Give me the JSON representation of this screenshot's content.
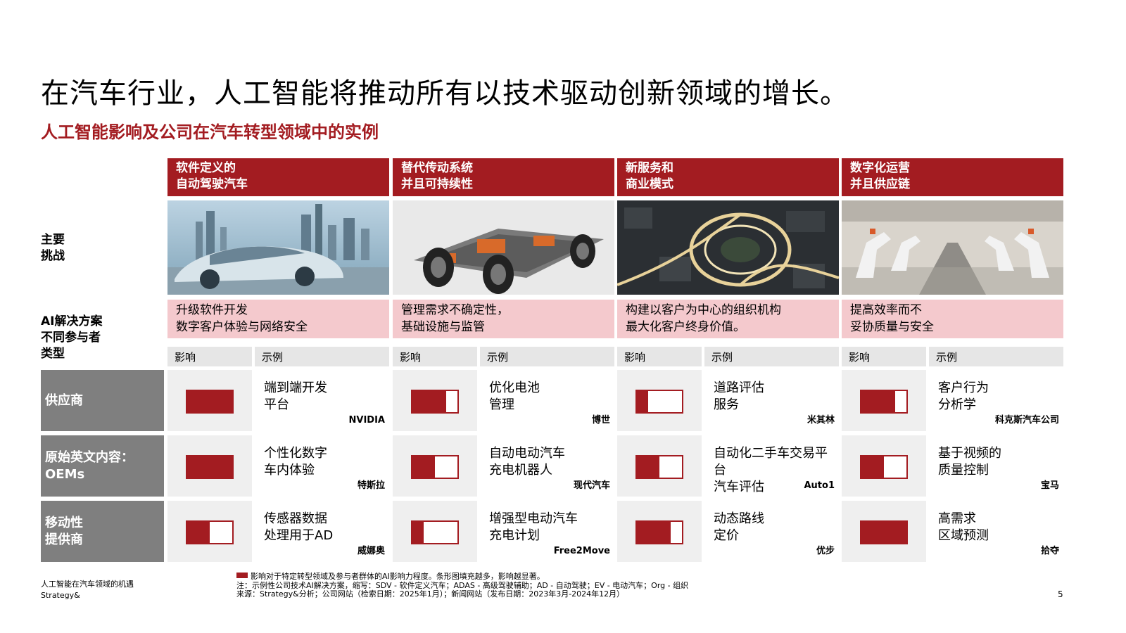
{
  "title": "在汽车行业，人工智能将推动所有以技术驱动创新领域的增长。",
  "subtitle": "人工智能影响及公司在汽车转型领域中的实例",
  "row_labels": {
    "challenge": "主要\n挑战",
    "ai": "AI解决方案\n不同参与者\n类型"
  },
  "columns": [
    {
      "header": "软件定义的\n自动驾驶汽车",
      "ai_solution": "升级软件开发\n数字客户体验与网络安全",
      "impact_label": "影响",
      "example_label": "示例",
      "image": "autonomous-car-image"
    },
    {
      "header": "替代传动系统\n并且可持续性",
      "ai_solution": "管理需求不确定性，\n基础设施与监管",
      "impact_label": "影响",
      "example_label": "示例",
      "image": "ev-chassis-image"
    },
    {
      "header": "新服务和\n商业模式",
      "ai_solution": "构建以客户为中心的组织机构\n最大化客户终身价值。",
      "impact_label": "影响",
      "example_label": "示例",
      "image": "city-aerial-image"
    },
    {
      "header": "数字化运营\n并且供应链",
      "ai_solution": "提高效率而不\n妥协质量与安全",
      "impact_label": "影响",
      "example_label": "示例",
      "image": "robot-factory-image"
    }
  ],
  "segments": [
    {
      "label": "供应商",
      "cells": [
        {
          "impact": 1.0,
          "example": "端到端开发\n平台",
          "company": "NVIDIA"
        },
        {
          "impact": 0.75,
          "example": "优化电池\n管理",
          "company": "博世"
        },
        {
          "impact": 0.25,
          "example": "道路评估\n服务",
          "company": "米其林"
        },
        {
          "impact": 0.75,
          "example": "客户行为\n分析学",
          "company": "科克斯汽车公司"
        }
      ]
    },
    {
      "label": "原始英文内容：OEMs",
      "cells": [
        {
          "impact": 1.0,
          "example": "个性化数字\n车内体验",
          "company": "特斯拉"
        },
        {
          "impact": 0.5,
          "example": "自动电动汽车\n充电机器人",
          "company": "现代汽车"
        },
        {
          "impact": 0.5,
          "example": "自动化二手车交易平台\n汽车评估",
          "company": "Auto1"
        },
        {
          "impact": 0.5,
          "example": "基于视频的\n质量控制",
          "company": "宝马"
        }
      ]
    },
    {
      "label": "移动性\n提供商",
      "cells": [
        {
          "impact": 0.5,
          "example": "传感器数据\n处理用于AD",
          "company": "威娜奥"
        },
        {
          "impact": 0.25,
          "example": "增强型电动汽车\n充电计划",
          "company": "Free2Move"
        },
        {
          "impact": 0.75,
          "example": "动态路线\n定价",
          "company": "优步"
        },
        {
          "impact": 1.0,
          "example": "高需求\n区域预测",
          "company": "拾夺"
        }
      ]
    }
  ],
  "footer": {
    "doc_title": "人工智能在汽车领域的机遇",
    "brand": "Strategy&",
    "legend_note": "影响对于特定转型领域及参与者群体的AI影响力程度。条形图填充越多，影响越显著。",
    "abbrev_note": "注：示例性公司技术AI解决方案，缩写：SDV - 软件定义汽车；ADAS - 高级驾驶辅助；AD - 自动驾驶；EV - 电动汽车；Org - 组织",
    "source_note": "来源：Strategy&分析；公司网站（检索日期：2025年1月）；新闻网站（发布日期：2023年3月-2024年12月）",
    "page_number": "5"
  },
  "colors": {
    "accent": "#a31c21",
    "pink": "#f4c9cd",
    "segment_gray": "#7f7f7f",
    "cell_gray": "#efefef"
  }
}
